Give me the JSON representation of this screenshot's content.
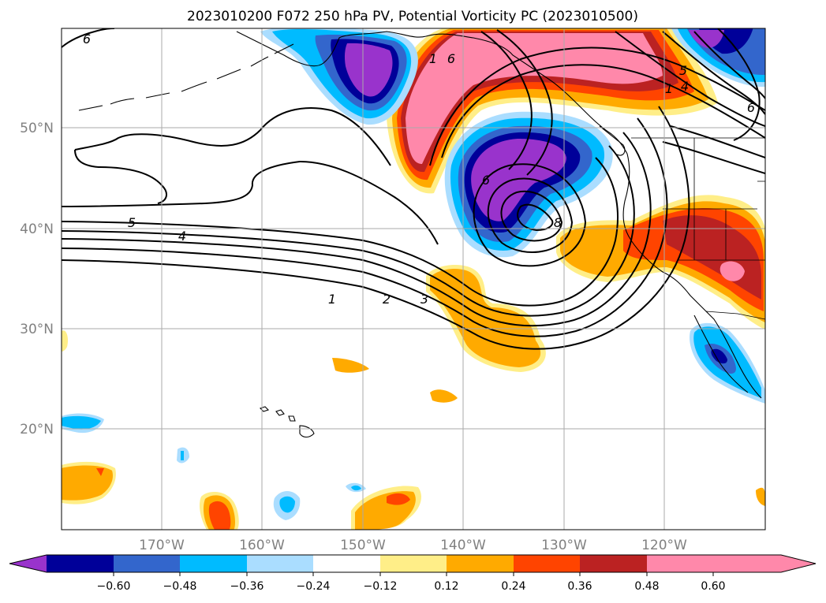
{
  "title": "2023010200 F072 250 hPa PV, Potential Vorticity PC (2023010500)",
  "map": {
    "lat_labels": [
      "50°N",
      "40°N",
      "30°N",
      "20°N"
    ],
    "lon_labels": [
      "170°W",
      "160°W",
      "150°W",
      "140°W",
      "130°W",
      "120°W"
    ],
    "contour_labels": [
      "6",
      "6",
      "5",
      "4",
      "3",
      "2",
      "1",
      "1",
      "8",
      "5",
      "4",
      "6",
      "6",
      "1"
    ]
  },
  "colorbar": {
    "colors": [
      "#9933cc",
      "#000099",
      "#3366cc",
      "#00bbff",
      "#aaddff",
      "#ffffff",
      "#ffee88",
      "#ffaa00",
      "#ff4400",
      "#bb2222",
      "#ff88aa"
    ],
    "ticks": [
      "−0.60",
      "−0.48",
      "−0.36",
      "−0.24",
      "−0.12",
      "0.12",
      "0.24",
      "0.36",
      "0.48",
      "0.60"
    ]
  }
}
